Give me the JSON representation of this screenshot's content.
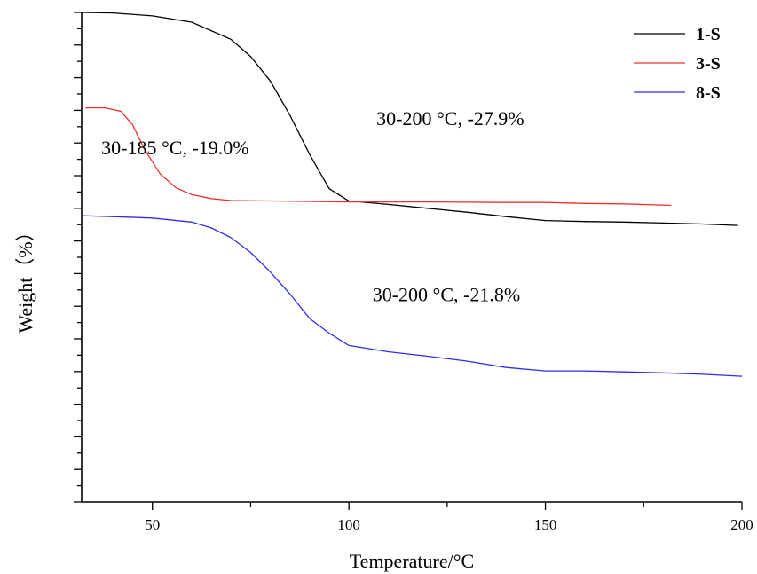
{
  "chart_data": {
    "type": "line",
    "title": "",
    "xlabel": "Temperature/°C",
    "ylabel": "Weight（%）",
    "xlim": [
      32,
      200
    ],
    "ylim": [
      0,
      100
    ],
    "x_ticks": [
      50,
      100,
      150,
      200
    ],
    "y_tick_count": 31,
    "y_tick_labels_shown": false,
    "grid": false,
    "legend_position": "top-right",
    "series": [
      {
        "name": "1-S",
        "color": "#000000",
        "points": [
          [
            32,
            100
          ],
          [
            40,
            99.9
          ],
          [
            50,
            99.3
          ],
          [
            60,
            98.0
          ],
          [
            70,
            94.5
          ],
          [
            75,
            91.0
          ],
          [
            80,
            86.0
          ],
          [
            85,
            79.0
          ],
          [
            90,
            71.0
          ],
          [
            95,
            64.0
          ],
          [
            100,
            61.5
          ],
          [
            110,
            60.8
          ],
          [
            120,
            60.0
          ],
          [
            130,
            59.2
          ],
          [
            140,
            58.3
          ],
          [
            150,
            57.5
          ],
          [
            160,
            57.3
          ],
          [
            170,
            57.2
          ],
          [
            180,
            57.0
          ],
          [
            190,
            56.8
          ],
          [
            199,
            56.5
          ]
        ]
      },
      {
        "name": "3-S",
        "color": "#e8322a",
        "points": [
          [
            33,
            80.5
          ],
          [
            38,
            80.5
          ],
          [
            42,
            79.8
          ],
          [
            45,
            77.0
          ],
          [
            48,
            72.0
          ],
          [
            52,
            67.0
          ],
          [
            56,
            64.2
          ],
          [
            60,
            62.8
          ],
          [
            65,
            62.0
          ],
          [
            70,
            61.6
          ],
          [
            80,
            61.5
          ],
          [
            100,
            61.3
          ],
          [
            120,
            61.3
          ],
          [
            140,
            61.2
          ],
          [
            150,
            61.2
          ],
          [
            160,
            61.0
          ],
          [
            170,
            60.9
          ],
          [
            182,
            60.6
          ]
        ]
      },
      {
        "name": "8-S",
        "color": "#2e2ee8",
        "points": [
          [
            32,
            58.5
          ],
          [
            40,
            58.3
          ],
          [
            50,
            58.0
          ],
          [
            60,
            57.2
          ],
          [
            65,
            56.0
          ],
          [
            70,
            54.0
          ],
          [
            75,
            51.0
          ],
          [
            80,
            47.0
          ],
          [
            85,
            42.5
          ],
          [
            90,
            37.5
          ],
          [
            95,
            34.5
          ],
          [
            100,
            32.0
          ],
          [
            110,
            30.7
          ],
          [
            120,
            29.8
          ],
          [
            130,
            28.8
          ],
          [
            140,
            27.5
          ],
          [
            150,
            26.8
          ],
          [
            160,
            26.8
          ],
          [
            170,
            26.6
          ],
          [
            180,
            26.4
          ],
          [
            190,
            26.1
          ],
          [
            200,
            25.7
          ]
        ]
      }
    ],
    "annotations": [
      {
        "text": "30-200 °C, -27.9%",
        "x": 107,
        "y": 77
      },
      {
        "text": "30-185 °C, -19.0%",
        "x": 37,
        "y": 71
      },
      {
        "text": "30-200 °C, -21.8%",
        "x": 106,
        "y": 41
      }
    ]
  }
}
